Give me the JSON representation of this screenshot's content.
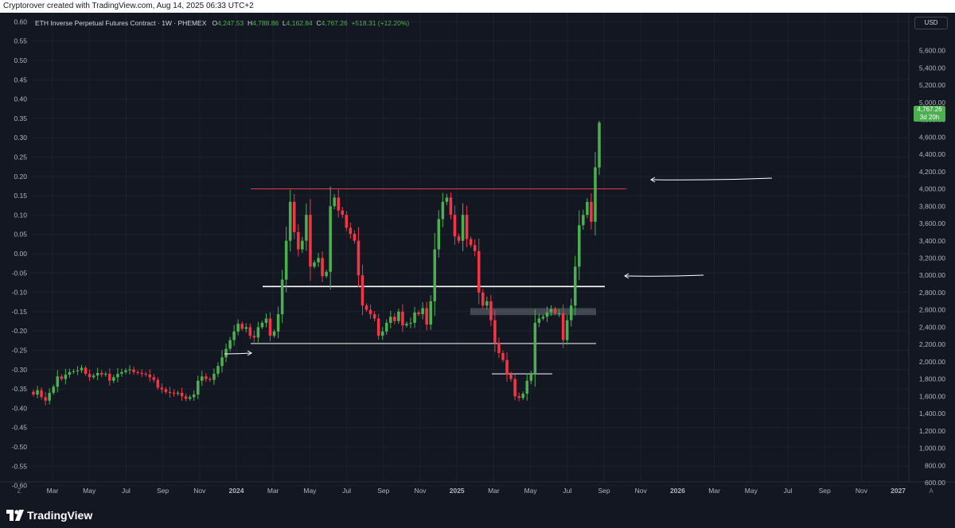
{
  "header": {
    "caption": "Cryptorover created with TradingView.com, Aug 14, 2025 06:33 UTC+2"
  },
  "legend": {
    "symbol": "ETH Inverse Perpetual Futures Contract · 1W · PHEMEX",
    "open_key": "O",
    "open": "4,247.53",
    "high_key": "H",
    "high": "4,788.86",
    "low_key": "L",
    "low": "4,162.84",
    "close_key": "C",
    "close": "4,767.26",
    "change": "+518.31 (+12.20%)"
  },
  "currency": "USD",
  "last_price": {
    "price": "4,767.26",
    "countdown": "3d 20h"
  },
  "footer": {
    "brand": "TradingView",
    "left_button": "Z",
    "right_button": "A"
  },
  "colors": {
    "up": "#4caf50",
    "down": "#f23645",
    "background": "#131722",
    "grid": "#1e222d",
    "resistance": "#f23645",
    "support": "#ffffff",
    "zone": "#6a6d78"
  },
  "chart_data": {
    "type": "candlestick",
    "timeframe": "1W",
    "left_axis": {
      "ticks": [
        "0.60",
        "0.55",
        "0.50",
        "0.45",
        "0.40",
        "0.35",
        "0.30",
        "0.25",
        "0.20",
        "0.15",
        "0.10",
        "0.05",
        "0.00",
        "-0.05",
        "-0.10",
        "-0.15",
        "-0.20",
        "-0.25",
        "-0.30",
        "-0.35",
        "-0.40",
        "-0.45",
        "-0.50",
        "-0.55",
        "-0.60"
      ]
    },
    "right_axis": {
      "ticks": [
        5600,
        5400,
        5200,
        5000,
        4800,
        4600,
        4400,
        4200,
        4000,
        3800,
        3600,
        3400,
        3200,
        3000,
        2800,
        2600,
        2400,
        2200,
        2000,
        1800,
        1600,
        1400,
        1200,
        1000,
        800,
        600
      ],
      "tick_labels": [
        "5,600.00",
        "5,400.00",
        "5,200.00",
        "5,000.00",
        "4,800.00",
        "4,600.00",
        "4,400.00",
        "4,200.00",
        "4,000.00",
        "3,800.00",
        "3,600.00",
        "3,400.00",
        "3,200.00",
        "3,000.00",
        "2,800.00",
        "2,600.00",
        "2,400.00",
        "2,200.00",
        "2,000.00",
        "1,800.00",
        "1,600.00",
        "1,400.00",
        "1,200.00",
        "1,000.00",
        "800.00",
        "600.00"
      ]
    },
    "x_axis": {
      "ticks": [
        {
          "label": "Mar",
          "bold": false
        },
        {
          "label": "May",
          "bold": false
        },
        {
          "label": "Jul",
          "bold": false
        },
        {
          "label": "Sep",
          "bold": false
        },
        {
          "label": "Nov",
          "bold": false
        },
        {
          "label": "2024",
          "bold": true
        },
        {
          "label": "Mar",
          "bold": false
        },
        {
          "label": "May",
          "bold": false
        },
        {
          "label": "Jul",
          "bold": false
        },
        {
          "label": "Sep",
          "bold": false
        },
        {
          "label": "Nov",
          "bold": false
        },
        {
          "label": "2025",
          "bold": true
        },
        {
          "label": "Mar",
          "bold": false
        },
        {
          "label": "May",
          "bold": false
        },
        {
          "label": "Jul",
          "bold": false
        },
        {
          "label": "Sep",
          "bold": false
        },
        {
          "label": "Nov",
          "bold": false
        },
        {
          "label": "2026",
          "bold": true
        },
        {
          "label": "Mar",
          "bold": false
        },
        {
          "label": "May",
          "bold": false
        },
        {
          "label": "Jul",
          "bold": false
        },
        {
          "label": "Sep",
          "bold": false
        },
        {
          "label": "Nov",
          "bold": false
        },
        {
          "label": "2027",
          "bold": true
        }
      ]
    },
    "closes": [
      1620,
      1670,
      1590,
      1550,
      1640,
      1710,
      1830,
      1800,
      1850,
      1880,
      1890,
      1900,
      1930,
      1860,
      1820,
      1840,
      1870,
      1850,
      1860,
      1780,
      1820,
      1860,
      1880,
      1900,
      1910,
      1880,
      1870,
      1860,
      1850,
      1820,
      1790,
      1700,
      1680,
      1650,
      1640,
      1630,
      1640,
      1600,
      1570,
      1590,
      1620,
      1780,
      1830,
      1800,
      1790,
      1860,
      1950,
      2050,
      2150,
      2250,
      2350,
      2440,
      2380,
      2400,
      2300,
      2280,
      2400,
      2450,
      2500,
      2300,
      2350,
      2550,
      2950,
      3400,
      3850,
      3500,
      3300,
      3400,
      3700,
      3100,
      3150,
      3200,
      2990,
      3040,
      3800,
      3900,
      3750,
      3700,
      3550,
      3480,
      3400,
      3000,
      2650,
      2600,
      2550,
      2500,
      2300,
      2350,
      2450,
      2520,
      2470,
      2580,
      2420,
      2440,
      2450,
      2570,
      2550,
      2620,
      2430,
      2700,
      3300,
      3650,
      3850,
      3900,
      3700,
      3450,
      3400,
      3700,
      3420,
      3350,
      3280,
      2800,
      2650,
      2700,
      2480,
      2220,
      2100,
      2020,
      1850,
      1800,
      1600,
      1580,
      1630,
      1780,
      1850,
      2450,
      2500,
      2520,
      2570,
      2610,
      2560,
      2560,
      2250,
      2480,
      2650,
      3100,
      3580,
      3700,
      3850,
      3620,
      4250,
      4767
    ],
    "levels": [
      {
        "name": "resistance",
        "price": 4000,
        "color": "red"
      },
      {
        "name": "support-upper",
        "price": 2870,
        "color": "white"
      },
      {
        "name": "support-lower",
        "price": 2210,
        "color": "white"
      },
      {
        "name": "local-low-marker",
        "price": 1860,
        "color": "white"
      }
    ],
    "zone": {
      "price_low": 2540,
      "price_high": 2620
    },
    "last": {
      "open": 4247.53,
      "high": 4788.86,
      "low": 4162.84,
      "close": 4767.26,
      "change": 518.31,
      "change_pct": 12.2
    },
    "grid": true
  }
}
